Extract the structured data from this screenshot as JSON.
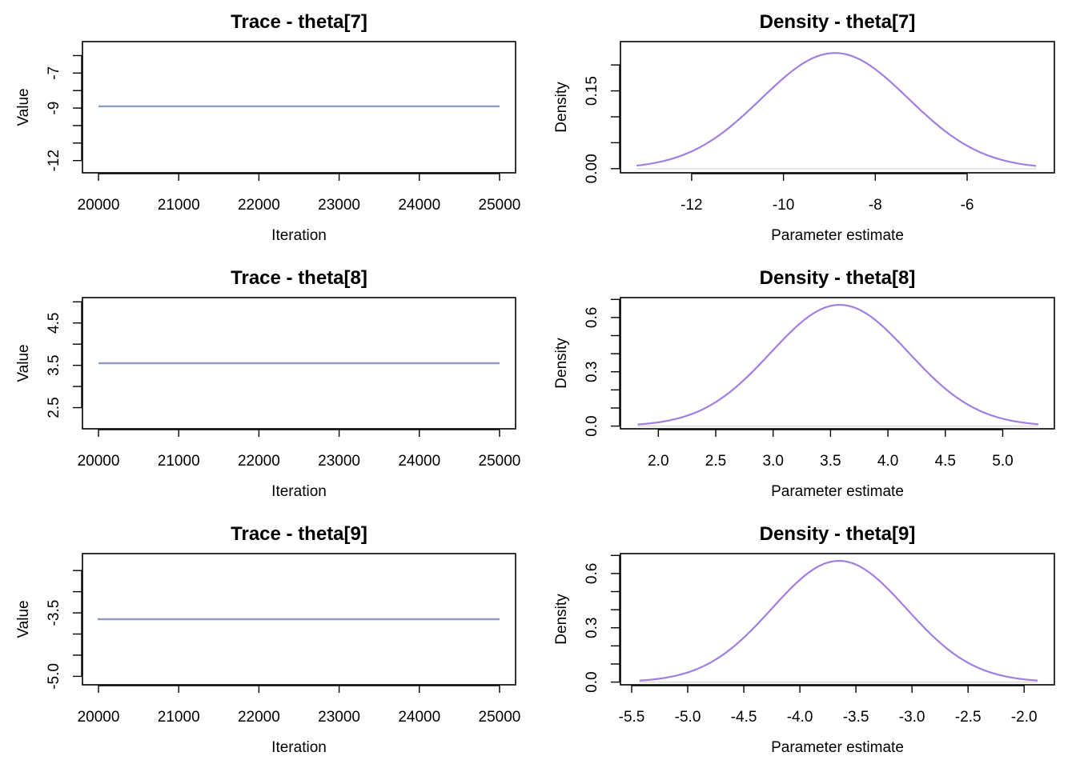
{
  "chart_data": [
    {
      "type": "line",
      "title": "Trace - theta[7]",
      "xlabel": "Iteration",
      "ylabel": "Value",
      "xlim": [
        19800,
        25200
      ],
      "ylim": [
        -12.7,
        -5.2
      ],
      "x_ticks": [
        20000,
        21000,
        22000,
        23000,
        24000,
        25000
      ],
      "x_tick_labels": [
        "20000",
        "21000",
        "22000",
        "23000",
        "24000",
        "25000"
      ],
      "y_ticks": [
        -12,
        -9,
        -7
      ],
      "y_tick_labels": [
        "-12",
        "-9",
        "-7"
      ],
      "y_minor_ticks": [
        -13,
        -11,
        -10,
        -8,
        -6
      ],
      "series": [
        {
          "values": [
            [
              20000,
              -8.9
            ],
            [
              25000,
              -8.9
            ]
          ],
          "color": "#8e9cbd"
        }
      ]
    },
    {
      "type": "line",
      "title": "Density - theta[7]",
      "xlabel": "Parameter estimate",
      "ylabel": "Density",
      "xlim": [
        -13.55,
        -4.1
      ],
      "ylim": [
        -0.008,
        0.245
      ],
      "x_ticks": [
        -12,
        -10,
        -8,
        -6
      ],
      "x_tick_labels": [
        "-12",
        "-10",
        "-8",
        "-6"
      ],
      "y_ticks": [
        0.0,
        0.15
      ],
      "y_tick_labels": [
        "0.00",
        "0.15"
      ],
      "y_minor_ticks": [
        0.05,
        0.1,
        0.2
      ],
      "curve": {
        "mean": -8.88,
        "sd": 1.6,
        "peak": 0.223,
        "xmin": -13.2,
        "xmax": -4.5
      },
      "color": "#a07fe0",
      "baseline_color": "#dddddd"
    },
    {
      "type": "line",
      "title": "Trace - theta[8]",
      "xlabel": "Iteration",
      "ylabel": "Value",
      "xlim": [
        19800,
        25200
      ],
      "ylim": [
        2.0,
        5.1
      ],
      "x_ticks": [
        20000,
        21000,
        22000,
        23000,
        24000,
        25000
      ],
      "x_tick_labels": [
        "20000",
        "21000",
        "22000",
        "23000",
        "24000",
        "25000"
      ],
      "y_ticks": [
        2.5,
        3.5,
        4.5
      ],
      "y_tick_labels": [
        "2.5",
        "3.5",
        "4.5"
      ],
      "y_minor_ticks": [
        3.0,
        4.0,
        5.0
      ],
      "series": [
        {
          "values": [
            [
              20000,
              3.55
            ],
            [
              25000,
              3.55
            ]
          ],
          "color": "#8e9cbd"
        }
      ]
    },
    {
      "type": "line",
      "title": "Density - theta[8]",
      "xlabel": "Parameter estimate",
      "ylabel": "Density",
      "xlim": [
        1.67,
        5.45
      ],
      "ylim": [
        -0.015,
        0.71
      ],
      "x_ticks": [
        2.0,
        2.5,
        3.0,
        3.5,
        4.0,
        4.5,
        5.0
      ],
      "x_tick_labels": [
        "2.0",
        "2.5",
        "3.0",
        "3.5",
        "4.0",
        "4.5",
        "5.0"
      ],
      "y_ticks": [
        0.0,
        0.3,
        0.6
      ],
      "y_tick_labels": [
        "0.0",
        "0.3",
        "0.6"
      ],
      "y_minor_ticks": [
        0.1,
        0.2,
        0.4,
        0.5,
        0.7
      ],
      "curve": {
        "mean": 3.58,
        "sd": 0.6,
        "peak": 0.67,
        "xmin": 1.82,
        "xmax": 5.31
      },
      "color": "#a07fe0",
      "baseline_color": "#dddddd"
    },
    {
      "type": "line",
      "title": "Trace - theta[9]",
      "xlabel": "Iteration",
      "ylabel": "Value",
      "xlim": [
        19800,
        25200
      ],
      "ylim": [
        -5.2,
        -2.1
      ],
      "x_ticks": [
        20000,
        21000,
        22000,
        23000,
        24000,
        25000
      ],
      "x_tick_labels": [
        "20000",
        "21000",
        "22000",
        "23000",
        "24000",
        "25000"
      ],
      "y_ticks": [
        -5.0,
        -3.5
      ],
      "y_tick_labels": [
        "-5.0",
        "-3.5"
      ],
      "y_minor_ticks": [
        -4.5,
        -4.0,
        -3.0,
        -2.5
      ],
      "series": [
        {
          "values": [
            [
              19990,
              -3.65
            ],
            [
              25000,
              -3.65
            ]
          ],
          "color": "#8e9cbd"
        }
      ]
    },
    {
      "type": "line",
      "title": "Density - theta[9]",
      "xlabel": "Parameter estimate",
      "ylabel": "Density",
      "xlim": [
        -5.6,
        -1.73
      ],
      "ylim": [
        -0.015,
        0.71
      ],
      "x_ticks": [
        -5.5,
        -5.0,
        -4.5,
        -4.0,
        -3.5,
        -3.0,
        -2.5,
        -2.0
      ],
      "x_tick_labels": [
        "-5.5",
        "-5.0",
        "-4.5",
        "-4.0",
        "-3.5",
        "-3.0",
        "-2.5",
        "-2.0"
      ],
      "y_ticks": [
        0.0,
        0.3,
        0.6
      ],
      "y_tick_labels": [
        "0.0",
        "0.3",
        "0.6"
      ],
      "y_minor_ticks": [
        0.1,
        0.2,
        0.4,
        0.5,
        0.7
      ],
      "curve": {
        "mean": -3.65,
        "sd": 0.6,
        "peak": 0.67,
        "xmin": -5.43,
        "xmax": -1.88
      },
      "color": "#a07fe0",
      "baseline_color": "#dddddd"
    }
  ]
}
